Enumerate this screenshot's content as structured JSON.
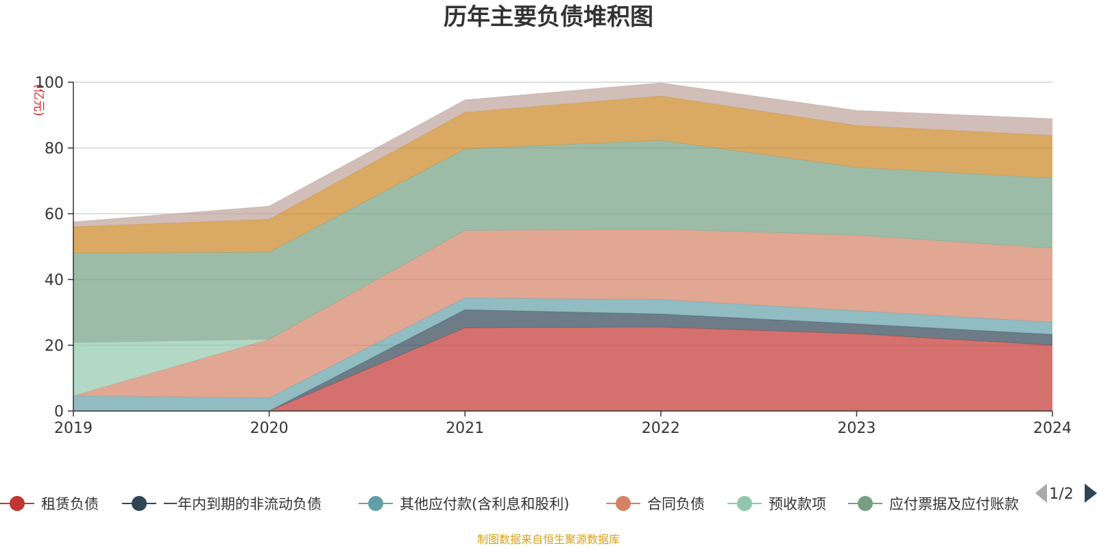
{
  "chart_data": {
    "type": "area",
    "stacked": true,
    "title": "历年主要负债堆积图",
    "unit_label": "(亿元)",
    "x": [
      "2019",
      "2020",
      "2021",
      "2022",
      "2023",
      "2024"
    ],
    "ylim": [
      0,
      100
    ],
    "yticks": [
      "0",
      "20",
      "40",
      "60",
      "80",
      "100"
    ],
    "grid": true,
    "legend_position": "bottom",
    "series": [
      {
        "name": "租赁负债",
        "color": "#c23531",
        "values": [
          0,
          0,
          25.3,
          25.5,
          23.5,
          20.0
        ]
      },
      {
        "name": "一年内到期的非流动负债",
        "color": "#2f4554",
        "values": [
          0,
          0,
          5.5,
          4.0,
          3.0,
          3.3
        ]
      },
      {
        "name": "其他应付款(含利息和股利)",
        "color": "#61a0a8",
        "values": [
          4.6,
          4.0,
          3.6,
          4.4,
          4.0,
          3.7
        ]
      },
      {
        "name": "合同负债",
        "color": "#d48265",
        "values": [
          0,
          17.8,
          20.5,
          21.4,
          23.0,
          22.5
        ]
      },
      {
        "name": "预收款项",
        "color": "#91c7ae",
        "values": [
          16.2,
          0,
          0,
          0,
          0,
          0
        ]
      },
      {
        "name": "应付票据及应付账款",
        "color": "#749f83",
        "values": [
          27.2,
          26.5,
          24.8,
          27.0,
          20.6,
          21.3
        ]
      },
      {
        "name": "",
        "color": "#ca8622",
        "values": [
          8.0,
          10.0,
          11.1,
          13.5,
          12.7,
          13.0
        ]
      },
      {
        "name": "",
        "color": "#bda29a",
        "values": [
          1.5,
          4.0,
          3.8,
          4.0,
          4.6,
          5.1
        ]
      }
    ],
    "legend_visible_count": 6,
    "pagination": "1/2"
  },
  "source_note": "制图数据来自恒生聚源数据库"
}
